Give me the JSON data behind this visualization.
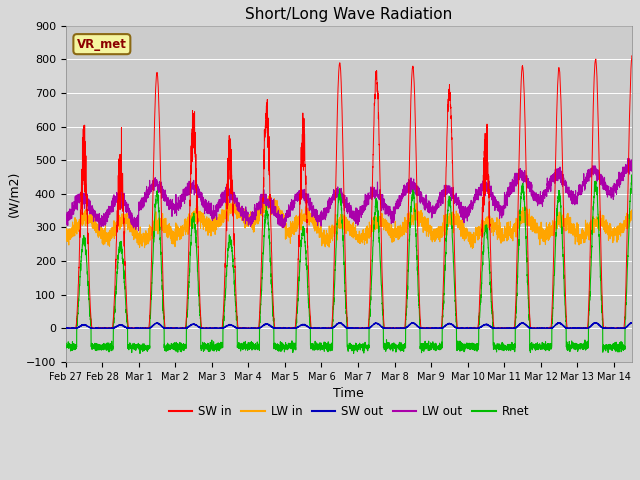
{
  "title": "Short/Long Wave Radiation",
  "xlabel": "Time",
  "ylabel": "(W/m2)",
  "ylim": [
    -100,
    900
  ],
  "xlim": [
    0,
    15.5
  ],
  "yticks": [
    -100,
    0,
    100,
    200,
    300,
    400,
    500,
    600,
    700,
    800,
    900
  ],
  "xtick_labels": [
    "Feb 27",
    "Feb 28",
    "Mar 1",
    "Mar 2",
    "Mar 3",
    "Mar 4",
    "Mar 5",
    "Mar 6",
    "Mar 7",
    "Mar 8",
    "Mar 9",
    "Mar 10",
    "Mar 11",
    "Mar 12",
    "Mar 13",
    "Mar 14"
  ],
  "xtick_positions": [
    0,
    1,
    2,
    3,
    4,
    5,
    6,
    7,
    8,
    9,
    10,
    11,
    12,
    13,
    14,
    15
  ],
  "colors": {
    "SW_in": "#ff0000",
    "LW_in": "#ffa500",
    "SW_out": "#0000bb",
    "LW_out": "#aa00aa",
    "Rnet": "#00bb00"
  },
  "legend_labels": [
    "SW in",
    "LW in",
    "SW out",
    "LW out",
    "Rnet"
  ],
  "label_box": "VR_met",
  "fig_facecolor": "#d8d8d8",
  "plot_facecolor": "#d0d0d0",
  "grid_color": "#ffffff"
}
